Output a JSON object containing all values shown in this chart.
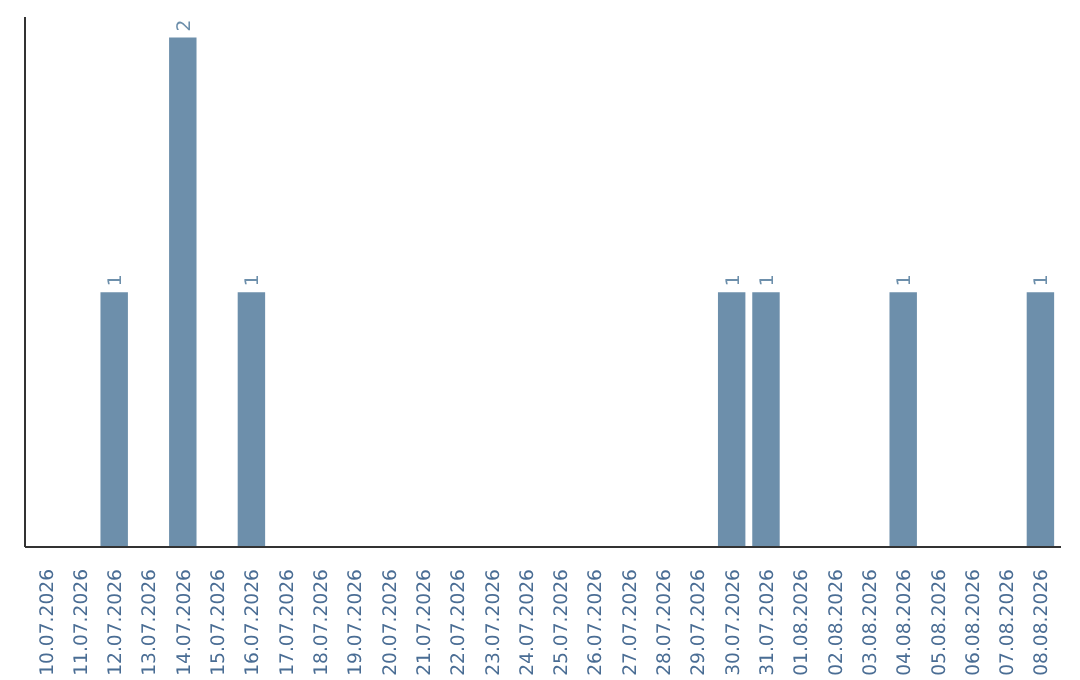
{
  "chart_data": {
    "type": "bar",
    "categories": [
      "10.07.2026",
      "11.07.2026",
      "12.07.2026",
      "13.07.2026",
      "14.07.2026",
      "15.07.2026",
      "16.07.2026",
      "17.07.2026",
      "18.07.2026",
      "19.07.2026",
      "20.07.2026",
      "21.07.2026",
      "22.07.2026",
      "23.07.2026",
      "24.07.2026",
      "25.07.2026",
      "26.07.2026",
      "27.07.2026",
      "28.07.2026",
      "29.07.2026",
      "30.07.2026",
      "31.07.2026",
      "01.08.2026",
      "02.08.2026",
      "03.08.2026",
      "04.08.2026",
      "05.08.2026",
      "06.08.2026",
      "07.08.2026",
      "08.08.2026"
    ],
    "values": [
      0,
      0,
      1,
      0,
      2,
      0,
      1,
      0,
      0,
      0,
      0,
      0,
      0,
      0,
      0,
      0,
      0,
      0,
      0,
      0,
      1,
      1,
      0,
      0,
      0,
      1,
      0,
      0,
      0,
      1
    ],
    "value_labels": [
      null,
      null,
      "1",
      null,
      "2",
      null,
      "1",
      null,
      null,
      null,
      null,
      null,
      null,
      null,
      null,
      null,
      null,
      null,
      null,
      null,
      "1",
      "1",
      null,
      null,
      null,
      "1",
      null,
      null,
      null,
      "1"
    ],
    "color": "#6d8fab",
    "tick_labels": "x"
  }
}
